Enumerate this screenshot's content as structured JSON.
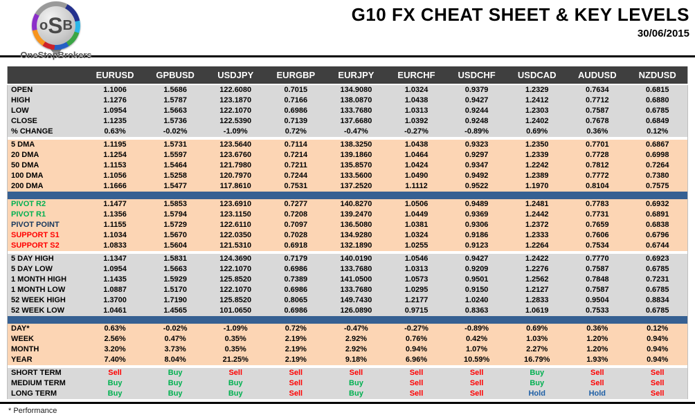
{
  "header": {
    "logo_text_o": "o",
    "logo_text_s": "S",
    "logo_text_b": "B",
    "logo_brand": "OneStopBrokers",
    "title": "G10 FX CHEAT SHEET & KEY LEVELS",
    "date": "30/06/2015"
  },
  "footer": {
    "note": "* Performance"
  },
  "colors": {
    "header_bar": "#3f3f3f",
    "section_gray": "#d9d9d9",
    "section_peach": "#fcd5b4",
    "divider_blue": "#366092",
    "buy_green": "#00b050",
    "sell_red": "#ff0000",
    "hold_blue": "#1f5fa5",
    "pivot_point_navy": "#17375d"
  },
  "chart_data": {
    "type": "table",
    "title": "G10 FX CHEAT SHEET & KEY LEVELS",
    "date": "30/06/2015",
    "columns": [
      "EURUSD",
      "GPBUSD",
      "USDJPY",
      "EURGBP",
      "EURJPY",
      "EURCHF",
      "USDCHF",
      "USDCAD",
      "AUDUSD",
      "NZDUSD"
    ],
    "sections": [
      {
        "bg": "gray",
        "divider": "none",
        "rows": [
          {
            "label": "OPEN",
            "values": [
              "1.1006",
              "1.5686",
              "122.6080",
              "0.7015",
              "134.9080",
              "1.0324",
              "0.9379",
              "1.2329",
              "0.7634",
              "0.6815"
            ]
          },
          {
            "label": "HIGH",
            "values": [
              "1.1276",
              "1.5787",
              "123.1870",
              "0.7166",
              "138.0870",
              "1.0438",
              "0.9427",
              "1.2412",
              "0.7712",
              "0.6880"
            ]
          },
          {
            "label": "LOW",
            "values": [
              "1.0954",
              "1.5663",
              "122.1070",
              "0.6986",
              "133.7680",
              "1.0313",
              "0.9244",
              "1.2303",
              "0.7587",
              "0.6785"
            ]
          },
          {
            "label": "CLOSE",
            "values": [
              "1.1235",
              "1.5736",
              "122.5390",
              "0.7139",
              "137.6680",
              "1.0392",
              "0.9248",
              "1.2402",
              "0.7678",
              "0.6849"
            ]
          },
          {
            "label": "% CHANGE",
            "values": [
              "0.63%",
              "-0.02%",
              "-1.09%",
              "0.72%",
              "-0.47%",
              "-0.27%",
              "-0.89%",
              "0.69%",
              "0.36%",
              "0.12%"
            ]
          }
        ]
      },
      {
        "bg": "peach",
        "divider": "gap",
        "rows": [
          {
            "label": "5 DMA",
            "values": [
              "1.1195",
              "1.5731",
              "123.5640",
              "0.7114",
              "138.3250",
              "1.0438",
              "0.9323",
              "1.2350",
              "0.7701",
              "0.6867"
            ]
          },
          {
            "label": "20 DMA",
            "values": [
              "1.1254",
              "1.5597",
              "123.6760",
              "0.7214",
              "139.1860",
              "1.0464",
              "0.9297",
              "1.2339",
              "0.7728",
              "0.6998"
            ]
          },
          {
            "label": "50 DMA",
            "values": [
              "1.1153",
              "1.5464",
              "121.7980",
              "0.7211",
              "135.8570",
              "1.0424",
              "0.9347",
              "1.2242",
              "0.7812",
              "0.7264"
            ]
          },
          {
            "label": "100 DMA",
            "values": [
              "1.1056",
              "1.5258",
              "120.7970",
              "0.7244",
              "133.5600",
              "1.0490",
              "0.9492",
              "1.2389",
              "0.7772",
              "0.7380"
            ]
          },
          {
            "label": "200 DMA",
            "values": [
              "1.1666",
              "1.5477",
              "117.8610",
              "0.7531",
              "137.2520",
              "1.1112",
              "0.9522",
              "1.1970",
              "0.8104",
              "0.7575"
            ]
          }
        ]
      },
      {
        "bg": "peach",
        "divider": "blue",
        "rows": [
          {
            "label": "PIVOT R2",
            "label_color": "green",
            "values": [
              "1.1477",
              "1.5853",
              "123.6910",
              "0.7277",
              "140.8270",
              "1.0506",
              "0.9489",
              "1.2481",
              "0.7783",
              "0.6932"
            ]
          },
          {
            "label": "PIVOT R1",
            "label_color": "green",
            "values": [
              "1.1356",
              "1.5794",
              "123.1150",
              "0.7208",
              "139.2470",
              "1.0449",
              "0.9369",
              "1.2442",
              "0.7731",
              "0.6891"
            ]
          },
          {
            "label": "PIVOT POINT",
            "label_color": "navy",
            "values": [
              "1.1155",
              "1.5729",
              "122.6110",
              "0.7097",
              "136.5080",
              "1.0381",
              "0.9306",
              "1.2372",
              "0.7659",
              "0.6838"
            ]
          },
          {
            "label": "SUPPORT S1",
            "label_color": "red",
            "values": [
              "1.1034",
              "1.5670",
              "122.0350",
              "0.7028",
              "134.9280",
              "1.0324",
              "0.9186",
              "1.2333",
              "0.7606",
              "0.6796"
            ]
          },
          {
            "label": "SUPPORT S2",
            "label_color": "red",
            "values": [
              "1.0833",
              "1.5604",
              "121.5310",
              "0.6918",
              "132.1890",
              "1.0255",
              "0.9123",
              "1.2264",
              "0.7534",
              "0.6744"
            ]
          }
        ]
      },
      {
        "bg": "gray",
        "divider": "gap",
        "rows": [
          {
            "label": "5 DAY HIGH",
            "values": [
              "1.1347",
              "1.5831",
              "124.3690",
              "0.7179",
              "140.0190",
              "1.0546",
              "0.9427",
              "1.2422",
              "0.7770",
              "0.6923"
            ]
          },
          {
            "label": "5 DAY LOW",
            "values": [
              "1.0954",
              "1.5663",
              "122.1070",
              "0.6986",
              "133.7680",
              "1.0313",
              "0.9209",
              "1.2276",
              "0.7587",
              "0.6785"
            ]
          },
          {
            "label": "1 MONTH HIGH",
            "values": [
              "1.1435",
              "1.5929",
              "125.8520",
              "0.7389",
              "141.0500",
              "1.0573",
              "0.9501",
              "1.2562",
              "0.7848",
              "0.7231"
            ]
          },
          {
            "label": "1 MONTH LOW",
            "values": [
              "1.0887",
              "1.5170",
              "122.1070",
              "0.6986",
              "133.7680",
              "1.0295",
              "0.9150",
              "1.2127",
              "0.7587",
              "0.6785"
            ]
          },
          {
            "label": "52 WEEK HIGH",
            "values": [
              "1.3700",
              "1.7190",
              "125.8520",
              "0.8065",
              "149.7430",
              "1.2177",
              "1.0240",
              "1.2833",
              "0.9504",
              "0.8834"
            ]
          },
          {
            "label": "52 WEEK LOW",
            "values": [
              "1.0461",
              "1.4565",
              "101.0650",
              "0.6986",
              "126.0890",
              "0.9715",
              "0.8363",
              "1.0619",
              "0.7533",
              "0.6785"
            ]
          }
        ]
      },
      {
        "bg": "peach",
        "divider": "blue",
        "rows": [
          {
            "label": "DAY*",
            "values": [
              "0.63%",
              "-0.02%",
              "-1.09%",
              "0.72%",
              "-0.47%",
              "-0.27%",
              "-0.89%",
              "0.69%",
              "0.36%",
              "0.12%"
            ]
          },
          {
            "label": "WEEK",
            "values": [
              "2.56%",
              "0.47%",
              "0.35%",
              "2.19%",
              "2.92%",
              "0.76%",
              "0.42%",
              "1.03%",
              "1.20%",
              "0.94%"
            ]
          },
          {
            "label": "MONTH",
            "values": [
              "3.20%",
              "3.73%",
              "0.35%",
              "2.19%",
              "2.92%",
              "0.94%",
              "1.07%",
              "2.27%",
              "1.20%",
              "0.94%"
            ]
          },
          {
            "label": "YEAR",
            "values": [
              "7.40%",
              "8.04%",
              "21.25%",
              "2.19%",
              "9.18%",
              "6.96%",
              "10.59%",
              "16.79%",
              "1.93%",
              "0.94%"
            ]
          }
        ]
      },
      {
        "bg": "gray",
        "divider": "gap",
        "signals": true,
        "rows": [
          {
            "label": "SHORT TERM",
            "values": [
              "Sell",
              "Buy",
              "Sell",
              "Sell",
              "Sell",
              "Sell",
              "Sell",
              "Buy",
              "Sell",
              "Sell"
            ]
          },
          {
            "label": "MEDIUM TERM",
            "values": [
              "Buy",
              "Buy",
              "Buy",
              "Sell",
              "Buy",
              "Sell",
              "Sell",
              "Buy",
              "Sell",
              "Sell"
            ]
          },
          {
            "label": "LONG TERM",
            "values": [
              "Buy",
              "Buy",
              "Buy",
              "Sell",
              "Buy",
              "Sell",
              "Sell",
              "Hold",
              "Hold",
              "Sell"
            ]
          }
        ]
      }
    ]
  }
}
